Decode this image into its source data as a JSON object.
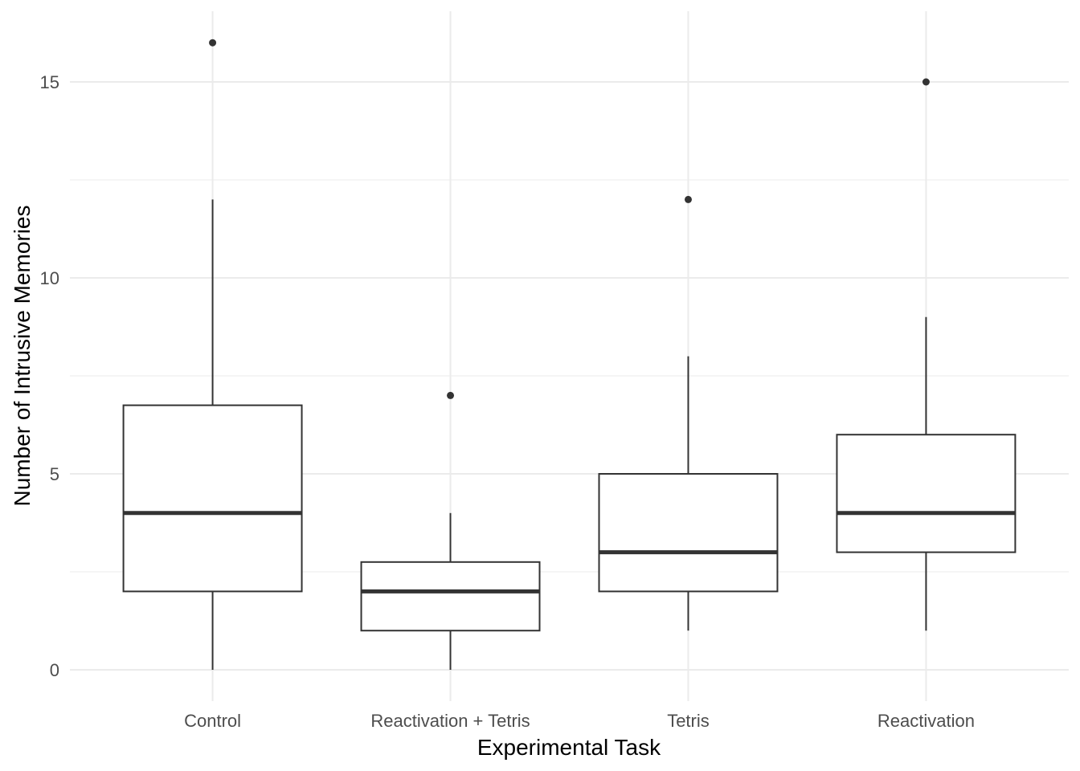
{
  "chart_data": {
    "type": "boxplot",
    "title": "",
    "xlabel": "Experimental Task",
    "ylabel": "Number of Intrusive Memories",
    "categories": [
      "Control",
      "Reactivation + Tetris",
      "Tetris",
      "Reactivation"
    ],
    "boxes": [
      {
        "category": "Control",
        "whisker_low": 0,
        "q1": 2,
        "median": 4,
        "q3": 6.75,
        "whisker_high": 12,
        "outliers": [
          16
        ]
      },
      {
        "category": "Reactivation + Tetris",
        "whisker_low": 0,
        "q1": 1,
        "median": 2,
        "q3": 2.75,
        "whisker_high": 4,
        "outliers": [
          7
        ]
      },
      {
        "category": "Tetris",
        "whisker_low": 1,
        "q1": 2,
        "median": 3,
        "q3": 5,
        "whisker_high": 8,
        "outliers": [
          12
        ]
      },
      {
        "category": "Reactivation",
        "whisker_low": 1,
        "q1": 3,
        "median": 4,
        "q3": 6,
        "whisker_high": 9,
        "outliers": [
          15
        ]
      }
    ],
    "y_ticks": [
      0,
      5,
      10,
      15
    ],
    "y_tick_labels": [
      "0",
      "5",
      "10",
      "15"
    ],
    "ylim": [
      -0.8,
      16.8
    ],
    "grid": true,
    "legend": "none",
    "colors": {
      "box_stroke": "#333333",
      "box_fill": "#ffffff",
      "grid": "#ebebeb",
      "tick_text": "#4d4d4d"
    }
  }
}
